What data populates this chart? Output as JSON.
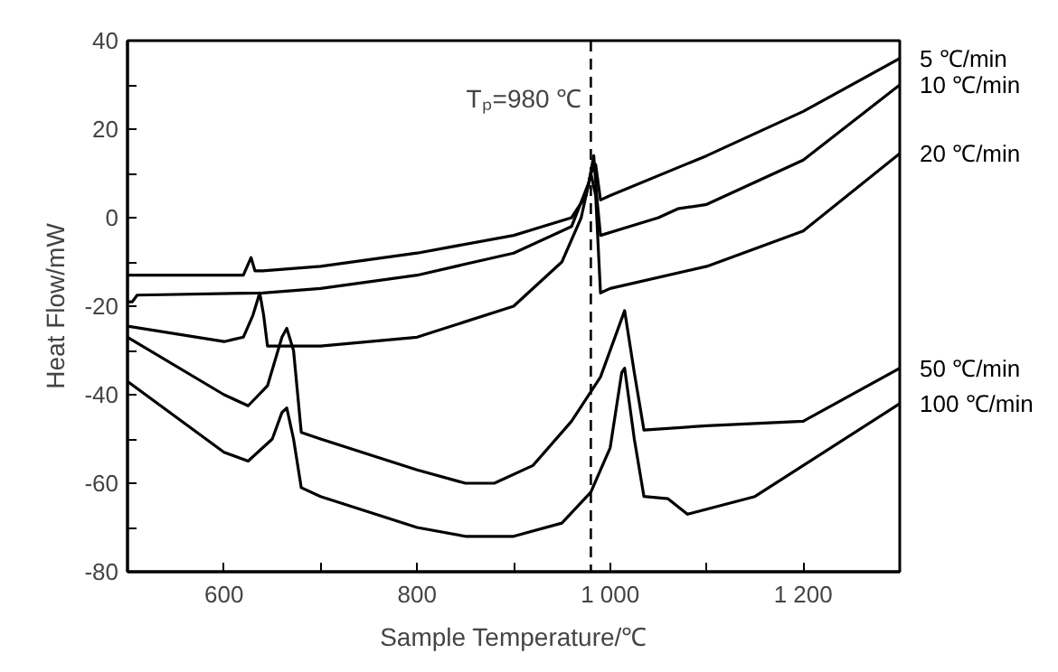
{
  "chart_data": {
    "type": "line",
    "xlabel": "Sample Temperature/℃",
    "ylabel": "Heat Flow/mW",
    "xlim": [
      500,
      1300
    ],
    "ylim": [
      -80,
      40
    ],
    "xticks": [
      600,
      {
        "value": 700,
        "label": null
      },
      800,
      {
        "value": 900,
        "label": null
      },
      {
        "value": 1000,
        "label": "1 000"
      },
      {
        "value": 1100,
        "label": null
      },
      {
        "value": 1200,
        "label": "1 200"
      }
    ],
    "yticks": [
      -80,
      {
        "value": -70,
        "label": null
      },
      -60,
      {
        "value": -50,
        "label": null
      },
      -40,
      {
        "value": -30,
        "label": null
      },
      -20,
      {
        "value": -10,
        "label": null
      },
      0,
      {
        "value": 10,
        "label": null
      },
      20,
      {
        "value": 30,
        "label": null
      },
      40
    ],
    "grid": false,
    "legend": false,
    "marker": "none",
    "line_style": "solid",
    "ref_lines": [
      {
        "axis": "x",
        "value": 980,
        "label": "Tₚ=980 ℃",
        "line_style": "dashed",
        "color": "#000000"
      }
    ],
    "series": [
      {
        "name": "5 ℃/min",
        "color": "#000000",
        "x": [
          500,
          620,
          628,
          632,
          640,
          700,
          800,
          900,
          960,
          975,
          980,
          985,
          990,
          1000,
          1100,
          1200,
          1300
        ],
        "values": [
          -13,
          -13,
          -9,
          -12,
          -12,
          -11,
          -8,
          -4,
          0,
          5,
          10,
          12,
          4,
          5,
          14,
          24,
          36
        ]
      },
      {
        "name": "10 ℃/min",
        "color": "#000000",
        "x": [
          500,
          505,
          510,
          640,
          700,
          800,
          900,
          960,
          978,
          983,
          986,
          990,
          1050,
          1070,
          1100,
          1200,
          1300
        ],
        "values": [
          -19,
          -19,
          -17.5,
          -17,
          -16,
          -13,
          -8,
          -2,
          8,
          14,
          5,
          -4,
          0,
          2,
          3,
          13,
          30
        ]
      },
      {
        "name": "20 ℃/min",
        "color": "#000000",
        "x": [
          500,
          600,
          620,
          630,
          637,
          641,
          645,
          700,
          800,
          900,
          950,
          970,
          980,
          985,
          990,
          1000,
          1100,
          1200,
          1300
        ],
        "values": [
          -24.5,
          -28,
          -27,
          -22,
          -17,
          -22,
          -29,
          -29,
          -27,
          -20,
          -10,
          0,
          10,
          5,
          -17,
          -16,
          -11,
          -3,
          14.5
        ]
      },
      {
        "name": "50 ℃/min",
        "color": "#000000",
        "x": [
          500,
          600,
          625,
          645,
          660,
          665,
          672,
          680,
          700,
          800,
          850,
          880,
          920,
          960,
          990,
          1010,
          1015,
          1025,
          1035,
          1100,
          1200,
          1300
        ],
        "values": [
          -27,
          -40,
          -42.5,
          -38,
          -27,
          -25,
          -30,
          -48.5,
          -50,
          -57,
          -60,
          -60,
          -56,
          -46,
          -36,
          -24,
          -21,
          -35,
          -48,
          -47,
          -46,
          -34
        ]
      },
      {
        "name": "100 ℃/min",
        "color": "#000000",
        "x": [
          500,
          600,
          625,
          650,
          660,
          665,
          672,
          680,
          700,
          800,
          850,
          900,
          950,
          980,
          1000,
          1012,
          1015,
          1025,
          1035,
          1060,
          1080,
          1150,
          1200,
          1300
        ],
        "values": [
          -37,
          -53,
          -55,
          -50,
          -44,
          -43,
          -50,
          -61,
          -63,
          -70,
          -72,
          -72,
          -69,
          -62,
          -52,
          -35,
          -34,
          -50,
          -63,
          -63.5,
          -67,
          -63,
          -56,
          -42
        ]
      }
    ]
  }
}
